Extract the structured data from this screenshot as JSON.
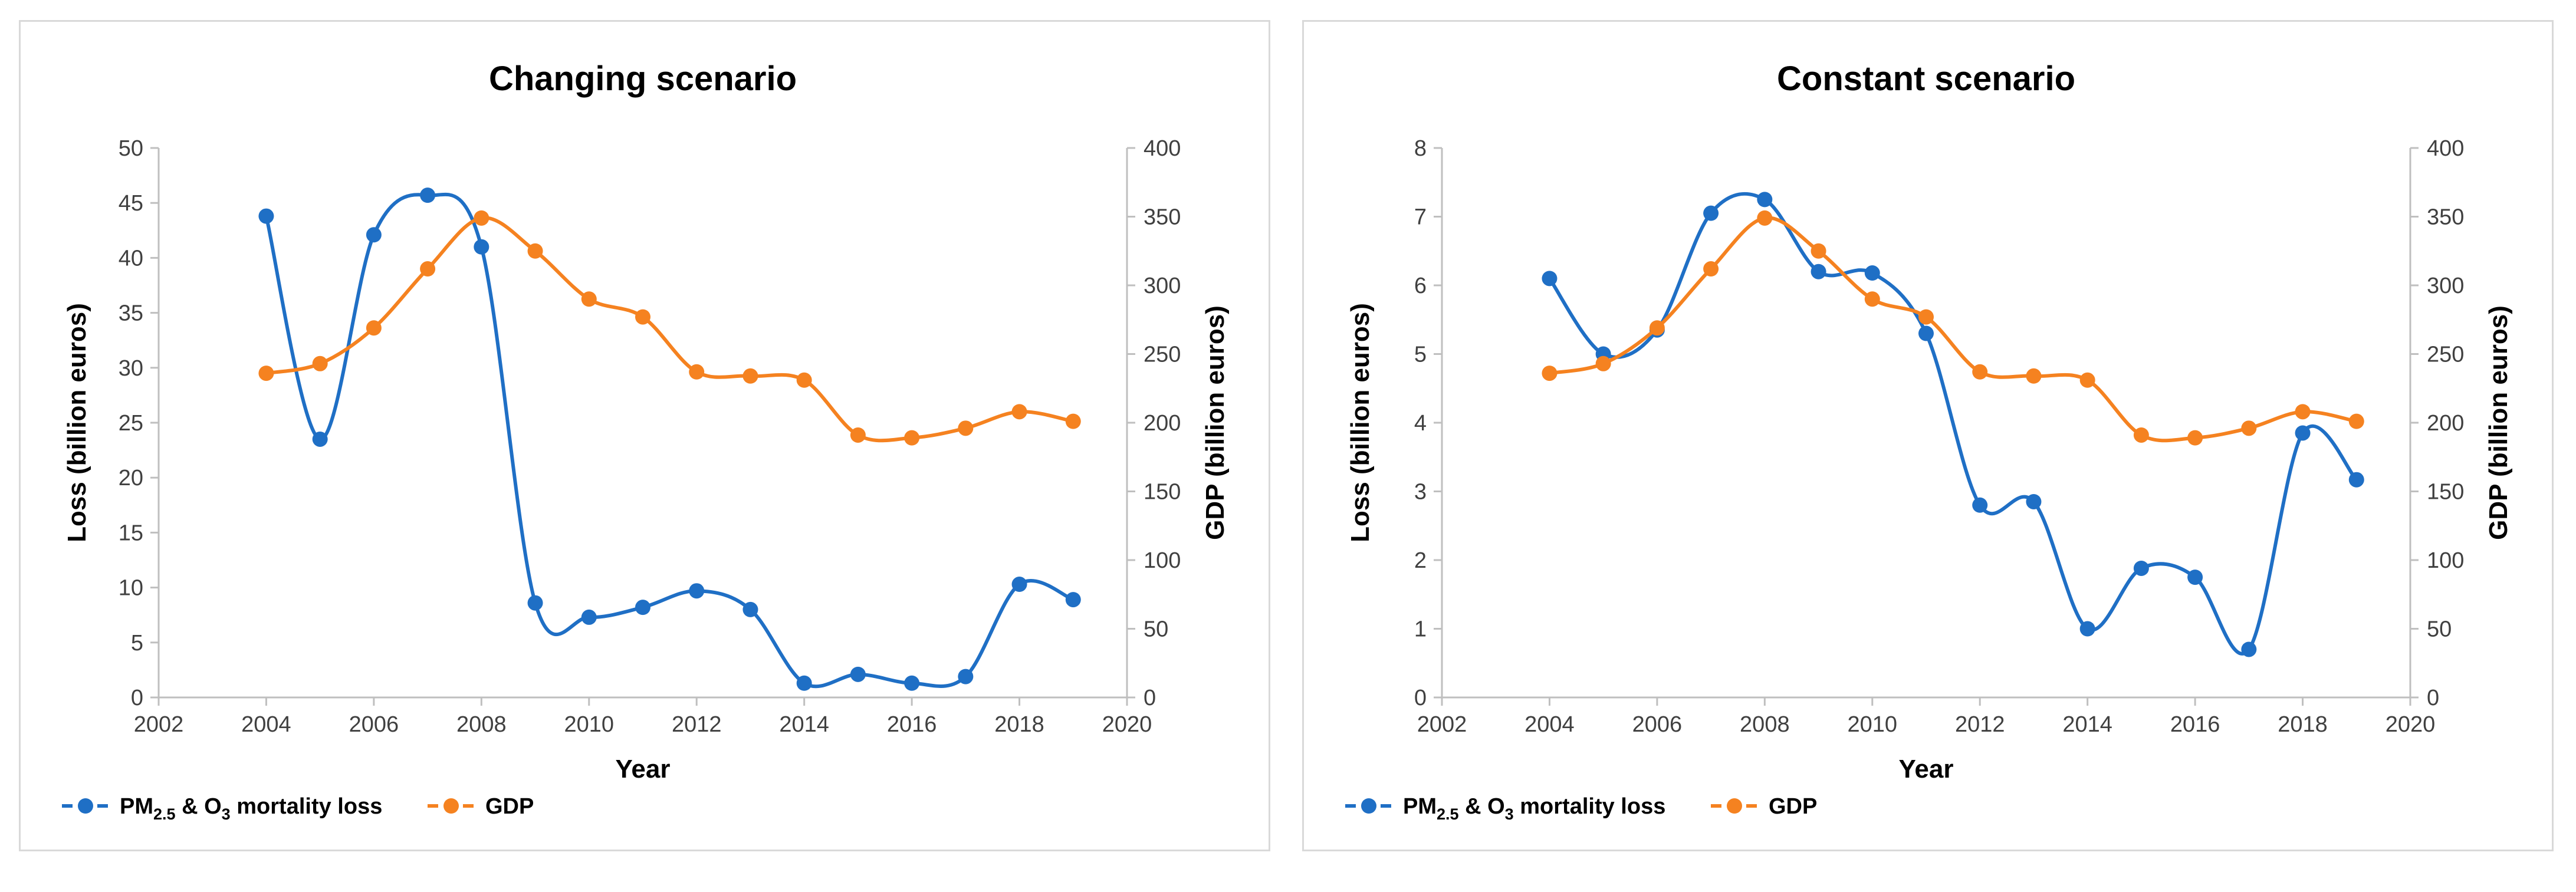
{
  "colors": {
    "loss": "#1f6fc5",
    "gdp": "#f58220",
    "axis": "#bfbfbf"
  },
  "chart_data": [
    {
      "type": "line",
      "title": "Changing scenario",
      "xlabel": "Year",
      "ylabel": "Loss (billion euros)",
      "y2label": "GDP  (billion euros)",
      "xlim": [
        2002,
        2020
      ],
      "xticks": [
        2002,
        2004,
        2006,
        2008,
        2010,
        2012,
        2014,
        2016,
        2018,
        2020
      ],
      "ylim": [
        0,
        50
      ],
      "yticks": [
        0,
        5,
        10,
        15,
        20,
        25,
        30,
        35,
        40,
        45,
        50
      ],
      "y2lim": [
        0,
        400
      ],
      "y2ticks": [
        0,
        50,
        100,
        150,
        200,
        250,
        300,
        350,
        400
      ],
      "legend_position": "bottom-left",
      "series": [
        {
          "name": "loss",
          "axis": "left",
          "legend_main": "PM",
          "legend_sub1": "2.5",
          "legend_mid": " & O",
          "legend_sub2": "3",
          "legend_tail": " mortality loss",
          "x": [
            2004,
            2005,
            2006,
            2007,
            2008,
            2009,
            2010,
            2011,
            2012,
            2013,
            2014,
            2015,
            2016,
            2017,
            2018,
            2019
          ],
          "values": [
            43.8,
            23.5,
            42.1,
            45.7,
            41.0,
            8.6,
            7.3,
            8.2,
            9.7,
            8.0,
            1.3,
            2.1,
            1.3,
            1.9,
            10.3,
            8.9
          ]
        },
        {
          "name": "GDP",
          "axis": "right",
          "x": [
            2004,
            2005,
            2006,
            2007,
            2008,
            2009,
            2010,
            2011,
            2012,
            2013,
            2014,
            2015,
            2016,
            2017,
            2018,
            2019
          ],
          "values": [
            236,
            243,
            269,
            312,
            349,
            325,
            290,
            277,
            237,
            234,
            231,
            191,
            189,
            196,
            208,
            201
          ]
        }
      ]
    },
    {
      "type": "line",
      "title": "Constant scenario",
      "xlabel": "Year",
      "ylabel": "Loss (billion euros)",
      "y2label": "GDP  (billion euros)",
      "xlim": [
        2002,
        2020
      ],
      "xticks": [
        2002,
        2004,
        2006,
        2008,
        2010,
        2012,
        2014,
        2016,
        2018,
        2020
      ],
      "ylim": [
        0,
        8
      ],
      "yticks": [
        0,
        1,
        2,
        3,
        4,
        5,
        6,
        7,
        8
      ],
      "y2lim": [
        0,
        400
      ],
      "y2ticks": [
        0,
        50,
        100,
        150,
        200,
        250,
        300,
        350,
        400
      ],
      "legend_position": "bottom-left",
      "series": [
        {
          "name": "loss",
          "axis": "left",
          "legend_main": "PM",
          "legend_sub1": "2.5",
          "legend_mid": " & O",
          "legend_sub2": "3",
          "legend_tail": " mortality loss",
          "x": [
            2004,
            2005,
            2006,
            2007,
            2008,
            2009,
            2010,
            2011,
            2012,
            2013,
            2014,
            2015,
            2016,
            2017,
            2018,
            2019
          ],
          "values": [
            6.1,
            5.0,
            5.35,
            7.05,
            7.25,
            6.2,
            6.18,
            5.3,
            2.8,
            2.85,
            1.0,
            1.88,
            1.75,
            0.7,
            3.85,
            3.17
          ]
        },
        {
          "name": "GDP",
          "axis": "right",
          "x": [
            2004,
            2005,
            2006,
            2007,
            2008,
            2009,
            2010,
            2011,
            2012,
            2013,
            2014,
            2015,
            2016,
            2017,
            2018,
            2019
          ],
          "values": [
            236,
            243,
            269,
            312,
            349,
            325,
            290,
            277,
            237,
            234,
            231,
            191,
            189,
            196,
            208,
            201
          ]
        }
      ]
    }
  ]
}
